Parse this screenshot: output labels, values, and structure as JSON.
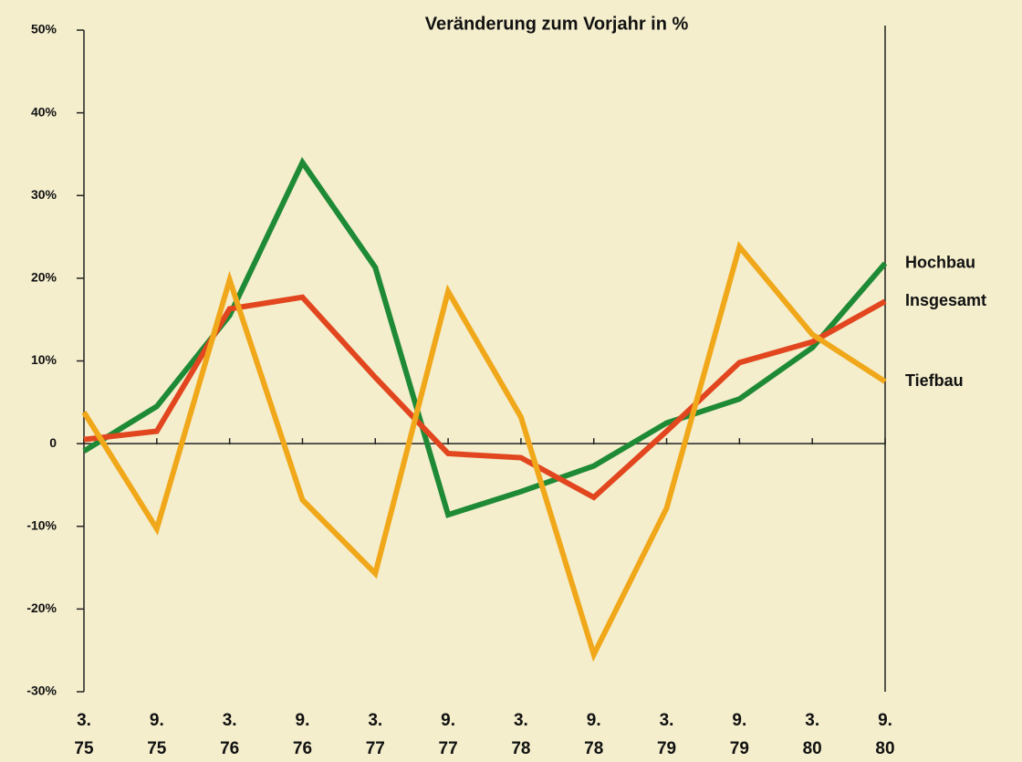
{
  "chart_data": {
    "type": "line",
    "title": "Veränderung zum Vorjahr in %",
    "categories": [
      [
        "3.",
        "75"
      ],
      [
        "9.",
        "75"
      ],
      [
        "3.",
        "76"
      ],
      [
        "9.",
        "76"
      ],
      [
        "3.",
        "77"
      ],
      [
        "9.",
        "77"
      ],
      [
        "3.",
        "78"
      ],
      [
        "9.",
        "78"
      ],
      [
        "3.",
        "79"
      ],
      [
        "9.",
        "79"
      ],
      [
        "3.",
        "80"
      ],
      [
        "9.",
        "80"
      ]
    ],
    "series": [
      {
        "name": "Hochbau",
        "color": "#1f8a36",
        "values": [
          -0.9,
          4.5,
          15.5,
          34,
          21.3,
          -8.6,
          -5.8,
          -2.7,
          2.5,
          5.4,
          11.6,
          21.8
        ]
      },
      {
        "name": "Insgesamt",
        "color": "#e2461e",
        "values": [
          0.5,
          1.5,
          16.3,
          17.7,
          8,
          -1.2,
          -1.7,
          -6.5,
          1.5,
          9.8,
          12.3,
          17.2
        ]
      },
      {
        "name": "Tiefbau",
        "color": "#f0a81a",
        "values": [
          3.8,
          -10.3,
          19.8,
          -6.8,
          -15.7,
          18.4,
          3.2,
          -25.5,
          -7.8,
          23.8,
          13.2,
          7.5
        ]
      }
    ],
    "ylim": [
      -30,
      50
    ],
    "yticks": [
      {
        "value": -30,
        "label": "-30%"
      },
      {
        "value": -20,
        "label": "-20%"
      },
      {
        "value": -10,
        "label": "-10%"
      },
      0,
      {
        "value": 10,
        "label": "10%"
      },
      {
        "value": 20,
        "label": "20%"
      },
      {
        "value": 30,
        "label": "30%"
      },
      {
        "value": 40,
        "label": "40%"
      },
      {
        "value": 50,
        "label": "50%"
      }
    ]
  }
}
